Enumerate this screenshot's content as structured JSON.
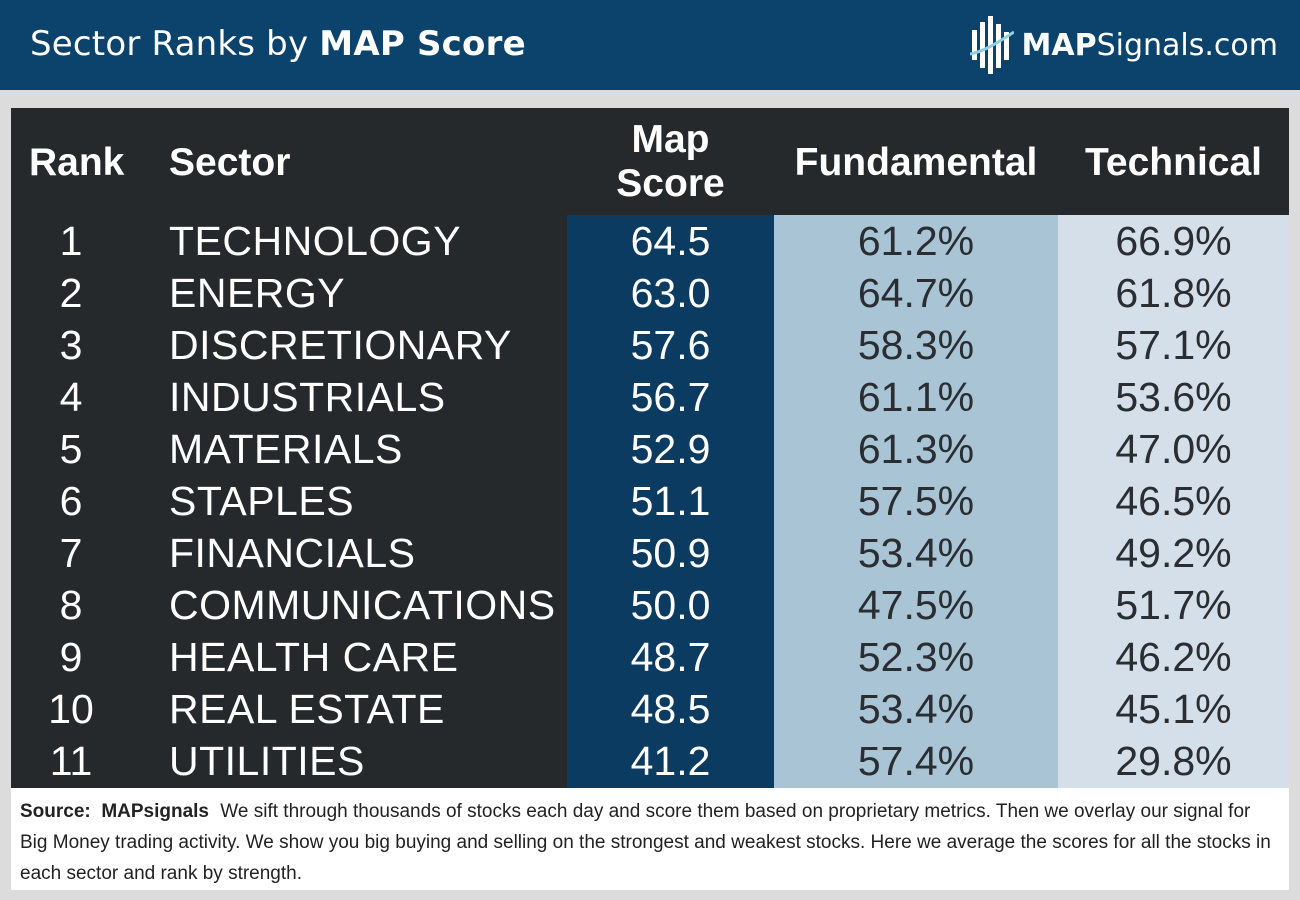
{
  "header": {
    "title_plain": "Sector Ranks by ",
    "title_bold": "MAP Score",
    "logo_bold": "MAP",
    "logo_regular": "Signals.com"
  },
  "colors": {
    "header_bg": "#0b436c",
    "table_bg": "#26292c",
    "map_col_bg": "#0c3b62",
    "fund_col_bg": "#a9c4d4",
    "tech_col_bg": "#d4dfea"
  },
  "chart_data": {
    "type": "table",
    "title": "Sector Ranks by MAP Score",
    "columns": [
      "Rank",
      "Sector",
      "Map Score",
      "Fundamental",
      "Technical"
    ],
    "column_header_lines": {
      "map_score": [
        "Map",
        "Score"
      ]
    },
    "rows": [
      {
        "rank": "1",
        "sector": "TECHNOLOGY",
        "map_score": "64.5",
        "fundamental": "61.2%",
        "technical": "66.9%"
      },
      {
        "rank": "2",
        "sector": "ENERGY",
        "map_score": "63.0",
        "fundamental": "64.7%",
        "technical": "61.8%"
      },
      {
        "rank": "3",
        "sector": "DISCRETIONARY",
        "map_score": "57.6",
        "fundamental": "58.3%",
        "technical": "57.1%"
      },
      {
        "rank": "4",
        "sector": "INDUSTRIALS",
        "map_score": "56.7",
        "fundamental": "61.1%",
        "technical": "53.6%"
      },
      {
        "rank": "5",
        "sector": "MATERIALS",
        "map_score": "52.9",
        "fundamental": "61.3%",
        "technical": "47.0%"
      },
      {
        "rank": "6",
        "sector": "STAPLES",
        "map_score": "51.1",
        "fundamental": "57.5%",
        "technical": "46.5%"
      },
      {
        "rank": "7",
        "sector": "FINANCIALS",
        "map_score": "50.9",
        "fundamental": "53.4%",
        "technical": "49.2%"
      },
      {
        "rank": "8",
        "sector": "COMMUNICATIONS",
        "map_score": "50.0",
        "fundamental": "47.5%",
        "technical": "51.7%"
      },
      {
        "rank": "9",
        "sector": "HEALTH CARE",
        "map_score": "48.7",
        "fundamental": "52.3%",
        "technical": "46.2%"
      },
      {
        "rank": "10",
        "sector": "REAL ESTATE",
        "map_score": "48.5",
        "fundamental": "53.4%",
        "technical": "45.1%"
      },
      {
        "rank": "11",
        "sector": "UTILITIES",
        "map_score": "41.2",
        "fundamental": "57.4%",
        "technical": "29.8%"
      }
    ]
  },
  "footer": {
    "source_label": "Source:",
    "source_name": "MAPsignals",
    "text": "We sift through thousands of stocks each day and score them based on proprietary metrics. Then we overlay our signal for Big Money trading activity. We show you big buying and selling on the strongest and weakest stocks. Here we average the scores for all the stocks in each sector and rank by strength."
  }
}
